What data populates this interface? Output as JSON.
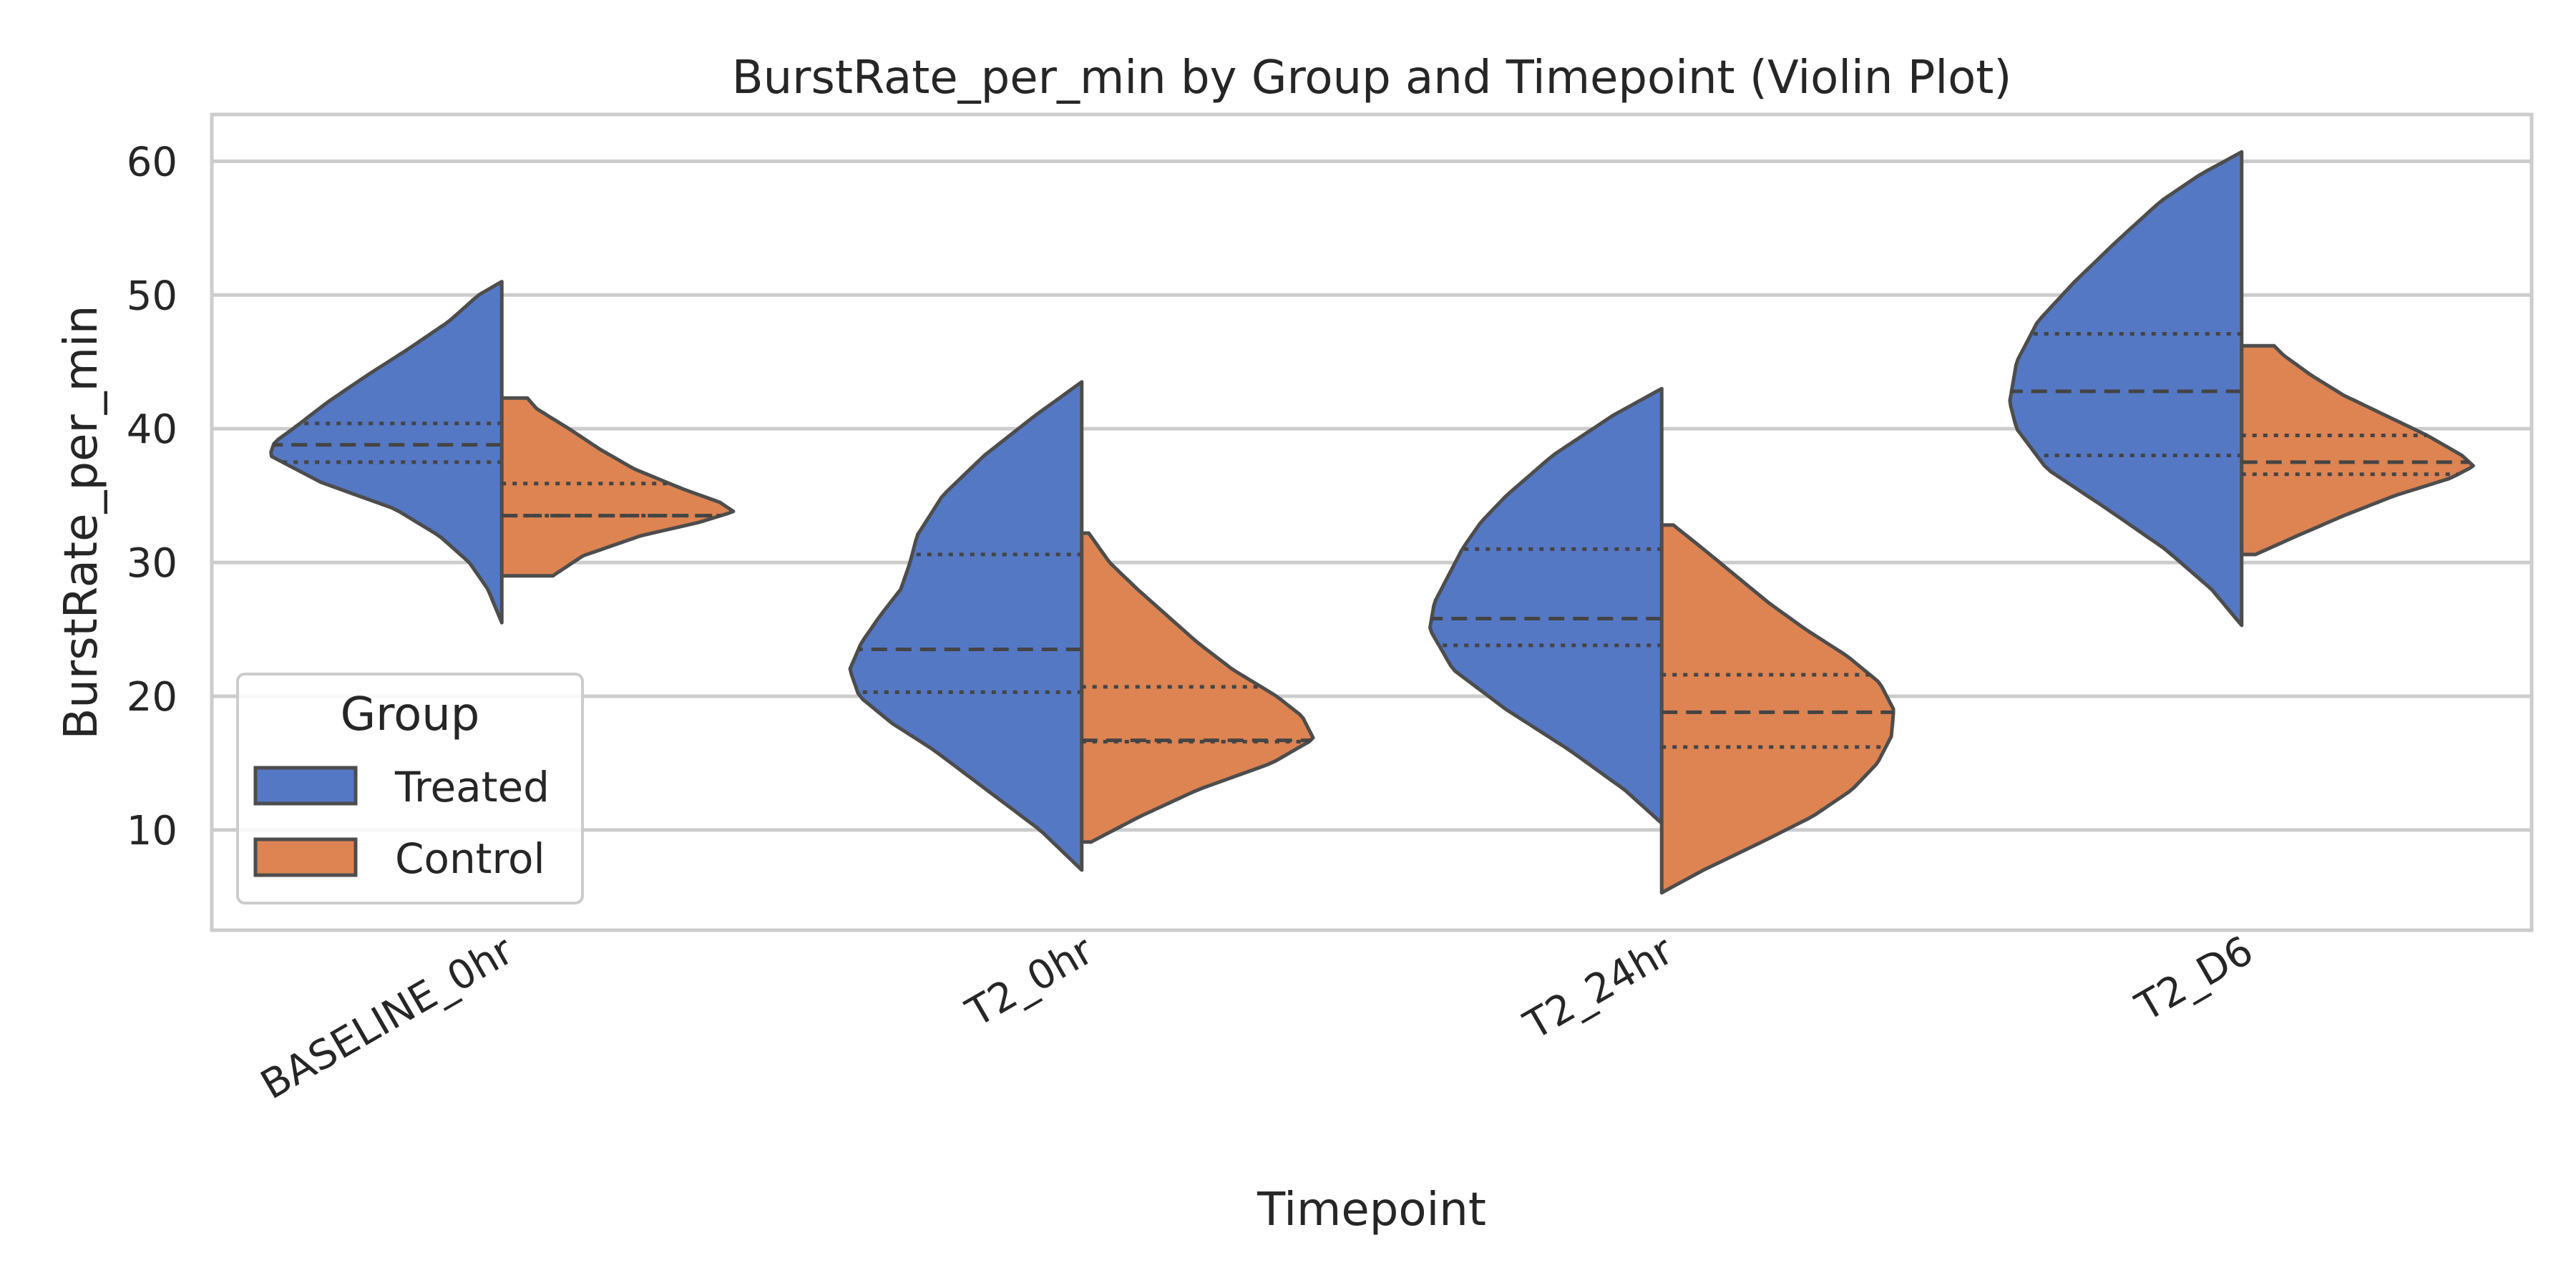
{
  "chart_data": {
    "type": "violin",
    "title": "BurstRate_per_min by Group and Timepoint (Violin Plot)",
    "xlabel": "Timepoint",
    "ylabel": "BurstRate_per_min",
    "ylim": [
      2.5,
      63.5
    ],
    "yticks": [
      10,
      20,
      30,
      40,
      50,
      60
    ],
    "grid": true,
    "split": true,
    "inner": "quartile",
    "categories": [
      "BASELINE_0hr",
      "T2_0hr",
      "T2_24hr",
      "T2_D6"
    ],
    "legend": {
      "title": "Group",
      "placement": "lower-left",
      "entries": [
        "Treated",
        "Control"
      ]
    },
    "colors": {
      "Treated": "#5578c5",
      "Control": "#dd8452",
      "edge": "#4d4d4d",
      "grid": "#cccccc",
      "frame": "#cccccc"
    },
    "series": [
      {
        "name": "Treated",
        "side": "left",
        "violins": [
          {
            "category": "BASELINE_0hr",
            "min": 25.5,
            "max": 51.0,
            "q1": 37.5,
            "median": 38.8,
            "q3": 40.4,
            "density": [
              [
                25.5,
                0.0
              ],
              [
                28,
                0.06
              ],
              [
                30,
                0.14
              ],
              [
                32,
                0.27
              ],
              [
                34,
                0.46
              ],
              [
                36,
                0.78
              ],
              [
                38,
                1.0
              ],
              [
                39,
                0.98
              ],
              [
                40,
                0.9
              ],
              [
                42,
                0.75
              ],
              [
                44,
                0.58
              ],
              [
                46,
                0.4
              ],
              [
                48,
                0.23
              ],
              [
                50,
                0.1
              ],
              [
                51,
                0.0
              ]
            ]
          },
          {
            "category": "T2_0hr",
            "min": 7.0,
            "max": 43.5,
            "q1": 20.3,
            "median": 23.5,
            "q3": 30.6,
            "density": [
              [
                7,
                0.0
              ],
              [
                10,
                0.18
              ],
              [
                13,
                0.41
              ],
              [
                16,
                0.64
              ],
              [
                18,
                0.82
              ],
              [
                20,
                0.96
              ],
              [
                22,
                1.0
              ],
              [
                24,
                0.95
              ],
              [
                26,
                0.87
              ],
              [
                28,
                0.78
              ],
              [
                30,
                0.74
              ],
              [
                32,
                0.71
              ],
              [
                35,
                0.6
              ],
              [
                38,
                0.42
              ],
              [
                41,
                0.2
              ],
              [
                43.5,
                0.0
              ]
            ]
          },
          {
            "category": "T2_24hr",
            "min": 10.5,
            "max": 43.0,
            "q1": 23.8,
            "median": 25.8,
            "q3": 31.0,
            "density": [
              [
                10.5,
                0.0
              ],
              [
                13,
                0.16
              ],
              [
                16,
                0.4
              ],
              [
                19,
                0.67
              ],
              [
                22,
                0.9
              ],
              [
                25,
                1.0
              ],
              [
                27,
                0.98
              ],
              [
                29,
                0.92
              ],
              [
                31,
                0.86
              ],
              [
                33,
                0.78
              ],
              [
                35,
                0.67
              ],
              [
                38,
                0.47
              ],
              [
                41,
                0.21
              ],
              [
                43,
                0.0
              ]
            ]
          },
          {
            "category": "T2_D6",
            "min": 25.3,
            "max": 60.7,
            "q1": 38.0,
            "median": 42.8,
            "q3": 47.1,
            "density": [
              [
                25.3,
                0.0
              ],
              [
                28,
                0.13
              ],
              [
                31,
                0.33
              ],
              [
                34,
                0.58
              ],
              [
                37,
                0.84
              ],
              [
                40,
                0.97
              ],
              [
                42,
                1.0
              ],
              [
                45,
                0.97
              ],
              [
                48,
                0.88
              ],
              [
                51,
                0.72
              ],
              [
                54,
                0.54
              ],
              [
                57,
                0.35
              ],
              [
                59,
                0.18
              ],
              [
                60.7,
                0.0
              ]
            ]
          }
        ]
      },
      {
        "name": "Control",
        "side": "right",
        "violins": [
          {
            "category": "BASELINE_0hr",
            "min": 29.0,
            "max": 42.3,
            "q1": 33.5,
            "median": 33.5,
            "q3": 35.9,
            "density": [
              [
                29,
                0.22
              ],
              [
                30.5,
                0.35
              ],
              [
                32,
                0.6
              ],
              [
                33,
                0.85
              ],
              [
                33.8,
                1.0
              ],
              [
                34.5,
                0.94
              ],
              [
                35.5,
                0.78
              ],
              [
                37,
                0.57
              ],
              [
                38.5,
                0.42
              ],
              [
                40,
                0.29
              ],
              [
                41.5,
                0.15
              ],
              [
                42.3,
                0.11
              ]
            ]
          },
          {
            "category": "T2_0hr",
            "min": 9.1,
            "max": 32.2,
            "q1": 16.6,
            "median": 16.7,
            "q3": 20.7,
            "density": [
              [
                9.1,
                0.04
              ],
              [
                11,
                0.25
              ],
              [
                13,
                0.5
              ],
              [
                15,
                0.82
              ],
              [
                16.8,
                1.0
              ],
              [
                18.5,
                0.95
              ],
              [
                20,
                0.84
              ],
              [
                22,
                0.65
              ],
              [
                24,
                0.5
              ],
              [
                26,
                0.37
              ],
              [
                28,
                0.24
              ],
              [
                30,
                0.12
              ],
              [
                32.2,
                0.03
              ]
            ]
          },
          {
            "category": "T2_24hr",
            "min": 5.3,
            "max": 32.8,
            "q1": 16.2,
            "median": 18.8,
            "q3": 21.6,
            "density": [
              [
                5.3,
                0.0
              ],
              [
                7,
                0.18
              ],
              [
                9,
                0.42
              ],
              [
                11,
                0.65
              ],
              [
                13,
                0.82
              ],
              [
                15,
                0.93
              ],
              [
                17,
                0.99
              ],
              [
                19,
                1.0
              ],
              [
                21,
                0.94
              ],
              [
                23,
                0.8
              ],
              [
                25,
                0.62
              ],
              [
                27,
                0.46
              ],
              [
                29,
                0.32
              ],
              [
                31,
                0.18
              ],
              [
                32.8,
                0.05
              ]
            ]
          },
          {
            "category": "T2_D6",
            "min": 30.6,
            "max": 46.2,
            "q1": 36.6,
            "median": 37.5,
            "q3": 39.5,
            "density": [
              [
                30.6,
                0.06
              ],
              [
                32,
                0.24
              ],
              [
                33.5,
                0.44
              ],
              [
                35,
                0.66
              ],
              [
                36.3,
                0.9
              ],
              [
                37.2,
                1.0
              ],
              [
                38,
                0.95
              ],
              [
                39.5,
                0.8
              ],
              [
                41,
                0.62
              ],
              [
                42.5,
                0.44
              ],
              [
                44,
                0.3
              ],
              [
                45.5,
                0.18
              ],
              [
                46.2,
                0.14
              ]
            ]
          }
        ]
      }
    ]
  }
}
